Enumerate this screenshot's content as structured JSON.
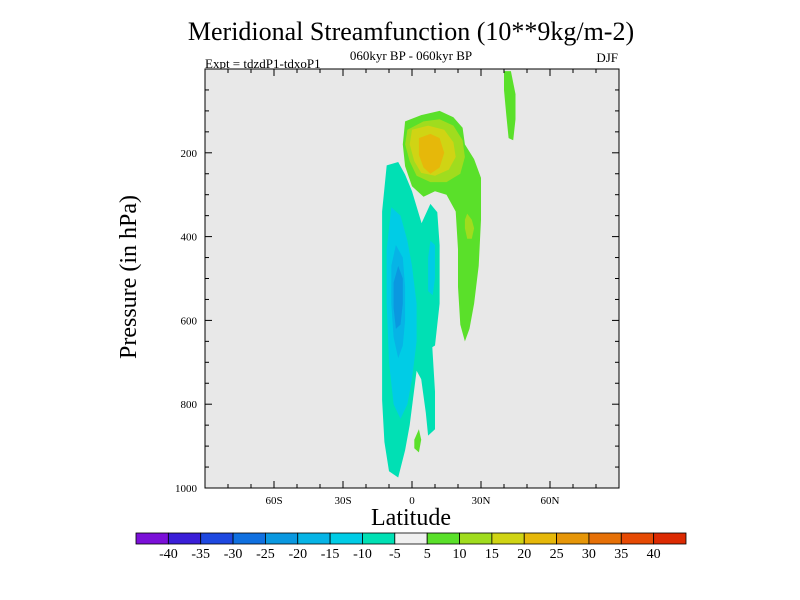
{
  "chart_data": {
    "type": "contour",
    "title": "Meridional Streamfunction (10**9kg/m-2)",
    "subtitle": "060kyr BP - 060kyr BP",
    "left_label": "Expt = tdzdP1-tdxoP1",
    "season": "DJF",
    "xlabel": "Latitude",
    "ylabel": "Pressure (in hPa)",
    "xlim": [
      -90,
      90
    ],
    "ylim": [
      1000,
      0
    ],
    "x_ticks": [
      {
        "value": -60,
        "label": "60S"
      },
      {
        "value": -30,
        "label": "30S"
      },
      {
        "value": 0,
        "label": "0"
      },
      {
        "value": 30,
        "label": "30N"
      },
      {
        "value": 60,
        "label": "60N"
      }
    ],
    "y_ticks": [
      {
        "value": 200,
        "label": "200"
      },
      {
        "value": 400,
        "label": "400"
      },
      {
        "value": 600,
        "label": "600"
      },
      {
        "value": 800,
        "label": "800"
      },
      {
        "value": 1000,
        "label": "1000"
      }
    ],
    "colorbar": {
      "levels": [
        -40,
        -35,
        -30,
        -25,
        -20,
        -15,
        -10,
        -5,
        5,
        10,
        15,
        20,
        25,
        30,
        35,
        40
      ],
      "labels": [
        "-40",
        "-35",
        "-30",
        "-25",
        "-20",
        "-15",
        "-10",
        "-5",
        "5",
        "10",
        "15",
        "20",
        "25",
        "30",
        "35",
        "40"
      ],
      "colors": [
        "#7b10d8",
        "#3a1ed8",
        "#1e48e0",
        "#1070e0",
        "#0a98e0",
        "#06b4e6",
        "#00cce6",
        "#00e0b4",
        "#f0f0f0",
        "#5ae02a",
        "#a0dc1e",
        "#d0d414",
        "#e6b80a",
        "#e69608",
        "#e67006",
        "#e64a04",
        "#dc2a02"
      ]
    },
    "contours": [
      {
        "name": "negative-cell-outer",
        "value_range": [
          -10,
          -5
        ],
        "color_index": 7,
        "points": [
          [
            -11,
            230
          ],
          [
            -6,
            222
          ],
          [
            -3,
            252
          ],
          [
            0,
            292
          ],
          [
            4,
            365
          ],
          [
            6,
            410
          ],
          [
            7,
            490
          ],
          [
            8,
            580
          ],
          [
            9,
            680
          ],
          [
            10,
            770
          ],
          [
            10,
            860
          ],
          [
            7,
            875
          ],
          [
            6,
            820
          ],
          [
            4,
            740
          ],
          [
            2,
            720
          ],
          [
            -1,
            850
          ],
          [
            -3,
            910
          ],
          [
            -6,
            975
          ],
          [
            -10,
            960
          ],
          [
            -12,
            890
          ],
          [
            -13,
            790
          ],
          [
            -13,
            660
          ],
          [
            -13,
            500
          ],
          [
            -13,
            340
          ]
        ]
      },
      {
        "name": "negative-cell-branch",
        "value_range": [
          -10,
          -5
        ],
        "color_index": 7,
        "points": [
          [
            4,
            370
          ],
          [
            8,
            322
          ],
          [
            11,
            342
          ],
          [
            12,
            420
          ],
          [
            12,
            560
          ],
          [
            10,
            660
          ],
          [
            7,
            670
          ],
          [
            6,
            560
          ],
          [
            5,
            450
          ]
        ]
      },
      {
        "name": "negative-cell-mid",
        "value_range": [
          -15,
          -10
        ],
        "color_index": 6,
        "points": [
          [
            -9,
            330
          ],
          [
            -5,
            350
          ],
          [
            -2,
            410
          ],
          [
            0,
            470
          ],
          [
            2,
            560
          ],
          [
            2,
            650
          ],
          [
            0,
            740
          ],
          [
            -2,
            800
          ],
          [
            -5,
            835
          ],
          [
            -8,
            800
          ],
          [
            -10,
            700
          ],
          [
            -11,
            560
          ],
          [
            -11,
            430
          ]
        ]
      },
      {
        "name": "negative-cell-mid-branch",
        "value_range": [
          -15,
          -10
        ],
        "color_index": 6,
        "points": [
          [
            8,
            410
          ],
          [
            10,
            420
          ],
          [
            10,
            500
          ],
          [
            9,
            540
          ],
          [
            7,
            530
          ],
          [
            7,
            450
          ]
        ]
      },
      {
        "name": "negative-cell-inner",
        "value_range": [
          -20,
          -15
        ],
        "color_index": 5,
        "points": [
          [
            -7,
            420
          ],
          [
            -4,
            450
          ],
          [
            -3,
            520
          ],
          [
            -3,
            600
          ],
          [
            -4,
            660
          ],
          [
            -6,
            690
          ],
          [
            -8,
            640
          ],
          [
            -9,
            560
          ],
          [
            -9,
            470
          ]
        ]
      },
      {
        "name": "negative-cell-core",
        "value_range": [
          -25,
          -20
        ],
        "color_index": 4,
        "points": [
          [
            -6,
            470
          ],
          [
            -4,
            500
          ],
          [
            -4,
            560
          ],
          [
            -5,
            610
          ],
          [
            -7,
            620
          ],
          [
            -8,
            570
          ],
          [
            -8,
            510
          ]
        ]
      },
      {
        "name": "positive-upper-outer",
        "value_range": [
          5,
          10
        ],
        "color_index": 9,
        "points": [
          [
            -3,
            125
          ],
          [
            4,
            110
          ],
          [
            12,
            100
          ],
          [
            18,
            115
          ],
          [
            22,
            140
          ],
          [
            23,
            180
          ],
          [
            27,
            215
          ],
          [
            30,
            260
          ],
          [
            30,
            360
          ],
          [
            29,
            470
          ],
          [
            27,
            560
          ],
          [
            25,
            620
          ],
          [
            23,
            650
          ],
          [
            21,
            610
          ],
          [
            20,
            520
          ],
          [
            20,
            430
          ],
          [
            19,
            340
          ],
          [
            15,
            300
          ],
          [
            10,
            292
          ],
          [
            5,
            305
          ],
          [
            0,
            280
          ],
          [
            -3,
            232
          ],
          [
            -4,
            180
          ]
        ]
      },
      {
        "name": "positive-upper-mid",
        "value_range": [
          10,
          15
        ],
        "color_index": 10,
        "points": [
          [
            -2,
            145
          ],
          [
            5,
            125
          ],
          [
            12,
            120
          ],
          [
            18,
            135
          ],
          [
            22,
            170
          ],
          [
            23,
            210
          ],
          [
            21,
            250
          ],
          [
            15,
            270
          ],
          [
            8,
            270
          ],
          [
            2,
            255
          ],
          [
            -1,
            220
          ],
          [
            -3,
            180
          ]
        ]
      },
      {
        "name": "positive-upper-inner",
        "value_range": [
          15,
          20
        ],
        "color_index": 11,
        "points": [
          [
            0,
            145
          ],
          [
            7,
            135
          ],
          [
            14,
            145
          ],
          [
            18,
            175
          ],
          [
            19,
            210
          ],
          [
            16,
            240
          ],
          [
            10,
            255
          ],
          [
            4,
            248
          ],
          [
            1,
            220
          ],
          [
            -1,
            180
          ]
        ]
      },
      {
        "name": "positive-upper-core",
        "value_range": [
          20,
          25
        ],
        "color_index": 12,
        "points": [
          [
            3,
            165
          ],
          [
            8,
            155
          ],
          [
            12,
            165
          ],
          [
            14,
            200
          ],
          [
            12,
            235
          ],
          [
            8,
            250
          ],
          [
            5,
            235
          ],
          [
            3,
            205
          ]
        ]
      },
      {
        "name": "positive-side-lobe",
        "value_range": [
          10,
          15
        ],
        "color_index": 10,
        "points": [
          [
            24,
            345
          ],
          [
            26,
            360
          ],
          [
            27,
            380
          ],
          [
            26,
            405
          ],
          [
            24,
            405
          ],
          [
            23,
            380
          ],
          [
            23,
            360
          ]
        ]
      },
      {
        "name": "positive-high-lat-tongue",
        "value_range": [
          5,
          10
        ],
        "color_index": 9,
        "points": [
          [
            40,
            5
          ],
          [
            43,
            5
          ],
          [
            45,
            60
          ],
          [
            45,
            120
          ],
          [
            44,
            170
          ],
          [
            42,
            165
          ],
          [
            41,
            110
          ],
          [
            40,
            50
          ]
        ]
      },
      {
        "name": "positive-small-blob",
        "value_range": [
          5,
          10
        ],
        "color_index": 9,
        "points": [
          [
            1,
            885
          ],
          [
            3,
            860
          ],
          [
            4,
            885
          ],
          [
            3,
            915
          ],
          [
            1,
            905
          ]
        ]
      }
    ]
  }
}
